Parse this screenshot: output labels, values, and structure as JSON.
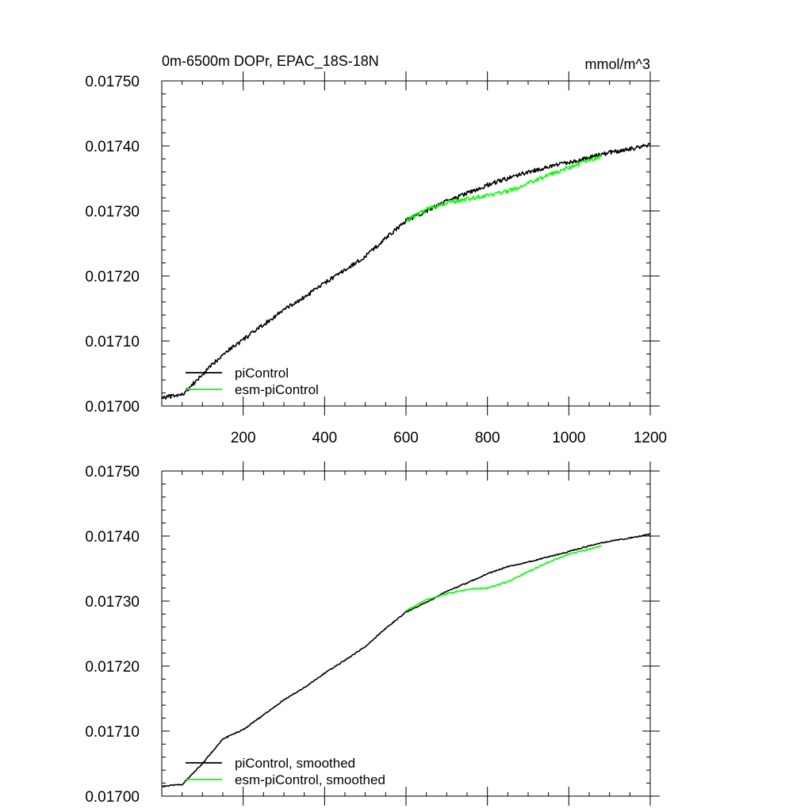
{
  "chart_data": [
    {
      "type": "line",
      "title": "0m-6500m DOPr, EPAC_18S-18N",
      "units": "mmol/m^3",
      "xlim": [
        0,
        1200
      ],
      "ylim": [
        0.017,
        0.0175
      ],
      "x_ticks": [
        200,
        400,
        600,
        800,
        1000,
        1200
      ],
      "x_tick_labels": [
        "200",
        "400",
        "600",
        "800",
        "1000",
        "1200"
      ],
      "y_ticks": [
        0.017,
        0.0171,
        0.0172,
        0.0173,
        0.0174,
        0.0175
      ],
      "y_tick_labels": [
        "0.01700",
        "0.01710",
        "0.01720",
        "0.01730",
        "0.01740",
        "0.01750"
      ],
      "legend": "bottom-left",
      "series": [
        {
          "name": "piControl",
          "color": "#000000",
          "smooth": false,
          "x": [
            0,
            50,
            100,
            150,
            200,
            250,
            300,
            350,
            400,
            450,
            500,
            550,
            600,
            650,
            700,
            750,
            800,
            850,
            900,
            950,
            1000,
            1050,
            1100,
            1150,
            1200
          ],
          "y": [
            0.017013,
            0.017017,
            0.017048,
            0.01708,
            0.017102,
            0.017125,
            0.017148,
            0.017167,
            0.017189,
            0.017209,
            0.01723,
            0.017258,
            0.017285,
            0.0173,
            0.017315,
            0.017327,
            0.01734,
            0.01735,
            0.01736,
            0.017368,
            0.017375,
            0.017382,
            0.01739,
            0.017395,
            0.017402
          ]
        },
        {
          "name": "esm-piControl",
          "color": "#00ff00",
          "smooth": false,
          "x": [
            600,
            650,
            700,
            750,
            800,
            850,
            900,
            950,
            1000,
            1050,
            1080
          ],
          "y": [
            0.017285,
            0.017302,
            0.017313,
            0.017318,
            0.017324,
            0.01733,
            0.017342,
            0.017355,
            0.017367,
            0.017378,
            0.017384
          ]
        }
      ]
    },
    {
      "type": "line",
      "title": "",
      "xlim": [
        0,
        1200
      ],
      "ylim": [
        0.017,
        0.0175
      ],
      "x_ticks": [
        200,
        400,
        600,
        800,
        1000,
        1200
      ],
      "y_ticks": [
        0.017,
        0.0171,
        0.0172,
        0.0173,
        0.0174,
        0.0175
      ],
      "y_tick_labels": [
        "0.01700",
        "0.01710",
        "0.01720",
        "0.01730",
        "0.01740",
        "0.01750"
      ],
      "legend": "bottom-left",
      "series": [
        {
          "name": "piControl, smoothed",
          "color": "#000000",
          "smooth": true,
          "x": [
            0,
            50,
            100,
            150,
            200,
            250,
            300,
            350,
            400,
            450,
            500,
            550,
            600,
            650,
            700,
            750,
            800,
            850,
            900,
            950,
            1000,
            1050,
            1100,
            1150,
            1200
          ],
          "y": [
            0.017015,
            0.017018,
            0.01705,
            0.017088,
            0.017102,
            0.017125,
            0.017148,
            0.017167,
            0.017189,
            0.017209,
            0.01723,
            0.017258,
            0.017283,
            0.017298,
            0.017315,
            0.017328,
            0.017342,
            0.017353,
            0.01736,
            0.017368,
            0.017376,
            0.017385,
            0.017392,
            0.017397,
            0.017403
          ]
        },
        {
          "name": "esm-piControl, smoothed",
          "color": "#00ff00",
          "smooth": true,
          "x": [
            600,
            650,
            700,
            750,
            800,
            850,
            900,
            950,
            1000,
            1050,
            1080
          ],
          "y": [
            0.017285,
            0.017302,
            0.017311,
            0.017318,
            0.01732,
            0.01733,
            0.017345,
            0.01736,
            0.017372,
            0.01738,
            0.017385
          ]
        }
      ]
    }
  ]
}
